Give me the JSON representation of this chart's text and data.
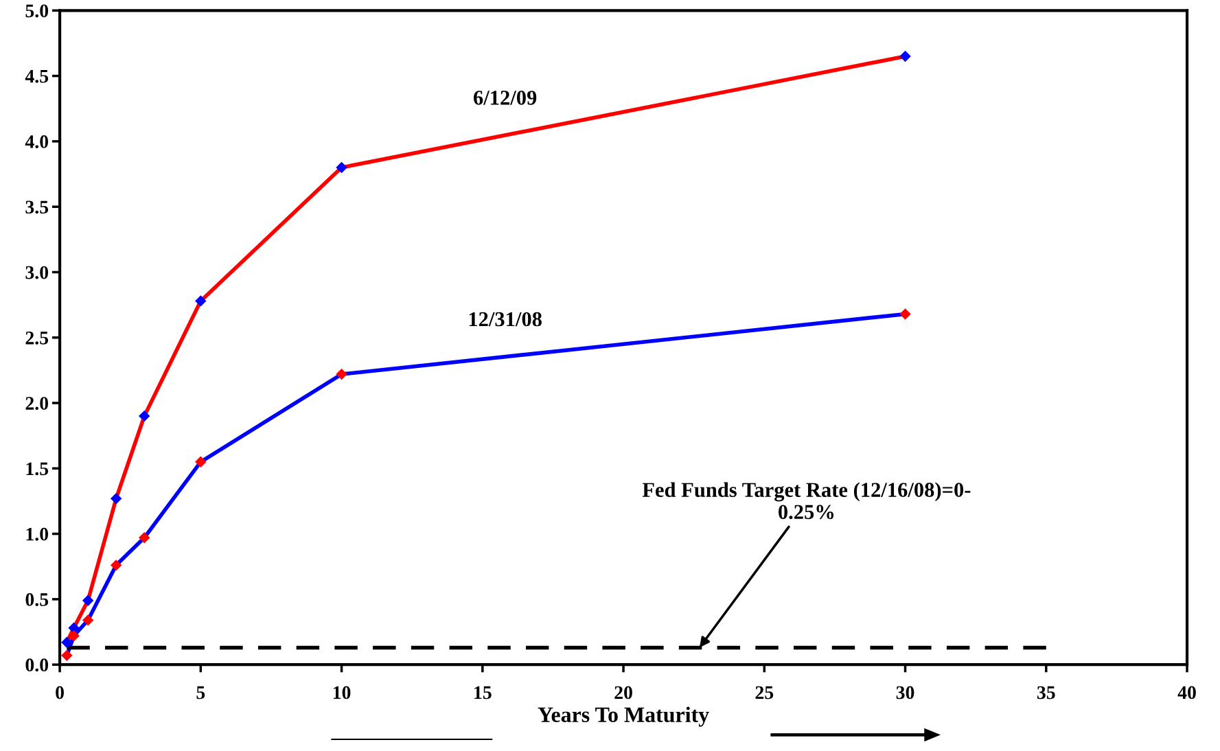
{
  "chart_data": {
    "type": "line",
    "xlabel": "Years To Maturity",
    "xlim": [
      0,
      40
    ],
    "xticks": [
      0,
      5,
      10,
      15,
      20,
      25,
      30,
      35,
      40
    ],
    "ylim": [
      0,
      5.0
    ],
    "yticks": [
      {
        "value": 0,
        "label": "0.0"
      },
      0.5,
      {
        "value": 1,
        "label": "1.0"
      },
      1.5,
      {
        "value": 2,
        "label": "2.0"
      },
      2.5,
      {
        "value": 3,
        "label": "3.0"
      },
      3.5,
      {
        "value": 4,
        "label": "4.0"
      },
      4.5,
      {
        "value": 5,
        "label": "5.0"
      }
    ],
    "grid": false,
    "legend": false,
    "marker": "diamond",
    "series": [
      {
        "name": "6/12/09",
        "color": "#ff0000",
        "colors": [
          "#0000ff",
          "#0000ff",
          "#0000ff",
          "#0000ff",
          "#0000ff",
          "#0000ff",
          "#0000ff",
          "#0000ff"
        ],
        "x": [
          0.25,
          0.5,
          1,
          2,
          3,
          5,
          10,
          30
        ],
        "values": [
          0.17,
          0.28,
          0.49,
          1.27,
          1.9,
          2.78,
          3.8,
          4.65
        ]
      },
      {
        "name": "12/31/08",
        "color": "#0000ff",
        "colors": [
          "#ff0000",
          "#ff0000",
          "#ff0000",
          "#ff0000",
          "#ff0000",
          "#ff0000",
          "#ff0000",
          "#ff0000"
        ],
        "x": [
          0.25,
          0.5,
          1,
          2,
          3,
          5,
          10,
          30
        ],
        "values": [
          0.07,
          0.22,
          0.34,
          0.76,
          0.97,
          1.55,
          2.22,
          2.68
        ]
      },
      {
        "color": "#000000",
        "marker": "none",
        "line_style": "dashed",
        "x": [
          0.25,
          35
        ],
        "values": [
          0.13,
          0.13
        ]
      }
    ],
    "annotations": [
      {
        "text": "Fed Funds Target Rate (12/16/08)=0-\n0.25%",
        "x": 22.7,
        "y": 0.13
      }
    ]
  }
}
